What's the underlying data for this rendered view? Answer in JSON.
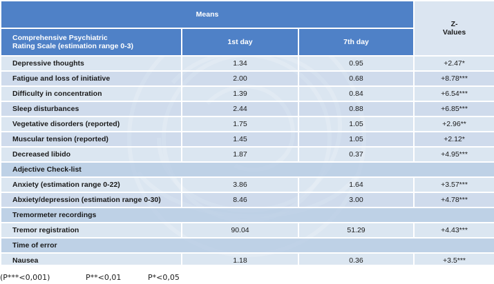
{
  "header": {
    "means": "Means",
    "z_values": "Z-\nValues",
    "scale_title": "Comprehensive Psychiatric\nRating Scale (estimation range 0-3)",
    "day1": "1st day",
    "day7": "7th day"
  },
  "rows": [
    {
      "label": "Depressive thoughts",
      "day1": "1.34",
      "day7": "0.95",
      "z": "+2.47*"
    },
    {
      "label": "Fatigue and loss of initiative",
      "day1": "2.00",
      "day7": "0.68",
      "z": "+8.78***"
    },
    {
      "label": "Difficulty in concentration",
      "day1": "1.39",
      "day7": "0.84",
      "z": "+6.54***"
    },
    {
      "label": "Sleep disturbances",
      "day1": "2.44",
      "day7": "0.88",
      "z": "+6.85***"
    },
    {
      "label": "Vegetative disorders (reported)",
      "day1": "1.75",
      "day7": "1.05",
      "z": "+2.96**"
    },
    {
      "label": "Muscular tension (reported)",
      "day1": "1.45",
      "day7": "1.05",
      "z": "+2.12*"
    },
    {
      "label": "Decreased libido",
      "day1": "1.87",
      "day7": "0.37",
      "z": "+4.95***"
    }
  ],
  "section_adjective": "Adjective Check-list",
  "adjective_rows": [
    {
      "label": "Anxiety (estimation range 0-22)",
      "day1": "3.86",
      "day7": "1.64",
      "z": "+3.57***"
    },
    {
      "label": "Abxiety/depression (estimation range 0-30)",
      "day1": "8.46",
      "day7": "3.00",
      "z": "+4.78***"
    }
  ],
  "section_tremor": "Tremormeter recordings",
  "tremor_rows": [
    {
      "label": "Tremor registration",
      "day1": "90.04",
      "day7": "51.29",
      "z": "+4.43***"
    }
  ],
  "section_error": "Time of error",
  "error_rows": [
    {
      "label": "Nausea",
      "day1": "1.18",
      "day7": "0.36",
      "z": "+3.5***"
    }
  ],
  "footer": {
    "p1": "(P***<0,001)",
    "p2": "P**<0,01",
    "p3": "P*<0,05"
  }
}
